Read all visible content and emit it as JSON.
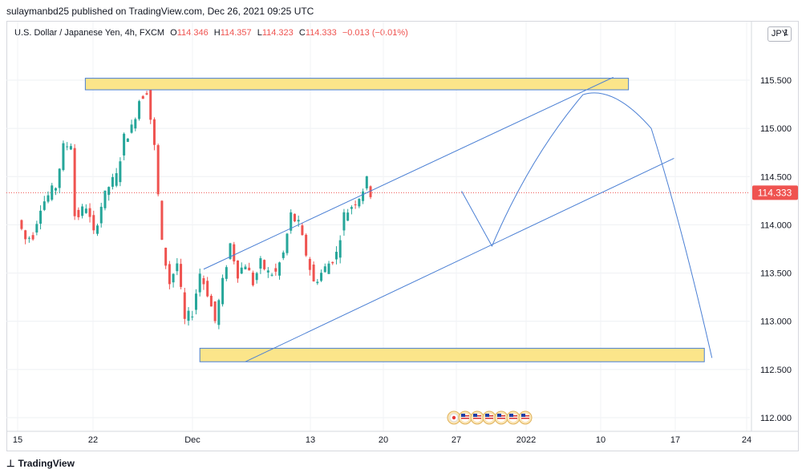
{
  "publish_line": "sulaymanbd25 published on TradingView.com, Dec 26, 2021 09:25 UTC",
  "legend": {
    "symbol": "U.S. Dollar / Japanese Yen, 4h, FXCM",
    "open_label": "O",
    "open": "114.346",
    "high_label": "H",
    "high": "114.357",
    "low_label": "L",
    "low": "114.323",
    "close_label": "C",
    "close": "114.333",
    "change": "−0.013 (−0.01%)"
  },
  "currency_badge": "JPY",
  "footer": "TradingView",
  "colors": {
    "up": "#26a69a",
    "down": "#ef5350",
    "drawing": "#4a7fd4",
    "zone_fill": "#fbe58a",
    "price_tag": "#ef5350"
  },
  "chart_data": {
    "type": "candlestick",
    "symbol": "USDJPY",
    "interval": "4h",
    "x_ticks": [
      "15",
      "22",
      "Dec",
      "13",
      "20",
      "27",
      "2022",
      "10",
      "17",
      "24"
    ],
    "y_ticks": [
      "115.500",
      "115.000",
      "114.500",
      "114.000",
      "113.500",
      "113.000",
      "112.500",
      "112.000"
    ],
    "y_top_partial_label": "1",
    "ylim": [
      111.8,
      116.1
    ],
    "last_price": "114.333",
    "candle_centers": [
      [
        0.0,
        114.05
      ],
      [
        1.0,
        113.85
      ],
      [
        2.0,
        113.9
      ],
      [
        3.0,
        114.2
      ],
      [
        4.0,
        114.3
      ],
      [
        5.0,
        114.4
      ],
      [
        6.0,
        114.8
      ],
      [
        7.0,
        114.85
      ],
      [
        7.5,
        114.1
      ],
      [
        8.0,
        114.1
      ],
      [
        9.0,
        114.2
      ],
      [
        10.0,
        113.9
      ],
      [
        11.0,
        114.2
      ],
      [
        12.0,
        114.4
      ],
      [
        13.0,
        114.5
      ],
      [
        14.0,
        114.9
      ],
      [
        15.0,
        115.0
      ],
      [
        16.0,
        115.3
      ],
      [
        17.0,
        115.4
      ],
      [
        18.0,
        114.8
      ],
      [
        19.0,
        113.8
      ],
      [
        20.0,
        113.4
      ],
      [
        21.0,
        113.6
      ],
      [
        22.0,
        113.0
      ],
      [
        23.0,
        113.1
      ],
      [
        24.0,
        113.5
      ],
      [
        25.0,
        113.3
      ],
      [
        26.0,
        113.0
      ],
      [
        27.0,
        113.4
      ],
      [
        28.0,
        113.8
      ],
      [
        29.0,
        113.5
      ],
      [
        30.0,
        113.6
      ],
      [
        31.0,
        113.4
      ],
      [
        32.0,
        113.6
      ],
      [
        33.0,
        113.5
      ],
      [
        34.0,
        113.5
      ],
      [
        35.0,
        113.7
      ],
      [
        36.0,
        114.1
      ],
      [
        37.0,
        114.0
      ],
      [
        38.0,
        113.7
      ],
      [
        39.0,
        113.4
      ],
      [
        40.0,
        113.5
      ],
      [
        41.0,
        113.6
      ],
      [
        42.0,
        113.7
      ],
      [
        43.0,
        114.1
      ],
      [
        44.0,
        114.2
      ],
      [
        45.0,
        114.3
      ],
      [
        46.0,
        114.45
      ],
      [
        46.5,
        114.33
      ]
    ],
    "drawings": {
      "resistance_zone": {
        "from_x": 8.4,
        "to_x": 80.0,
        "low": 115.4,
        "high": 115.52
      },
      "support_zone": {
        "from_x": 23.5,
        "to_x": 90.0,
        "low": 112.58,
        "high": 112.72
      },
      "channel_upper": {
        "start": [
          24.0,
          113.54
        ],
        "end": [
          78.0,
          115.53
        ]
      },
      "channel_lower": {
        "start": [
          29.5,
          112.58
        ],
        "end": [
          86.0,
          114.69
        ]
      },
      "projection_points": [
        [
          58.0,
          114.35
        ],
        [
          62.0,
          113.78
        ],
        [
          67.0,
          114.7
        ],
        [
          74.0,
          115.35
        ],
        [
          78.0,
          115.45
        ],
        [
          83.0,
          115.0
        ],
        [
          87.0,
          114.0
        ],
        [
          91.0,
          112.62
        ]
      ]
    }
  }
}
